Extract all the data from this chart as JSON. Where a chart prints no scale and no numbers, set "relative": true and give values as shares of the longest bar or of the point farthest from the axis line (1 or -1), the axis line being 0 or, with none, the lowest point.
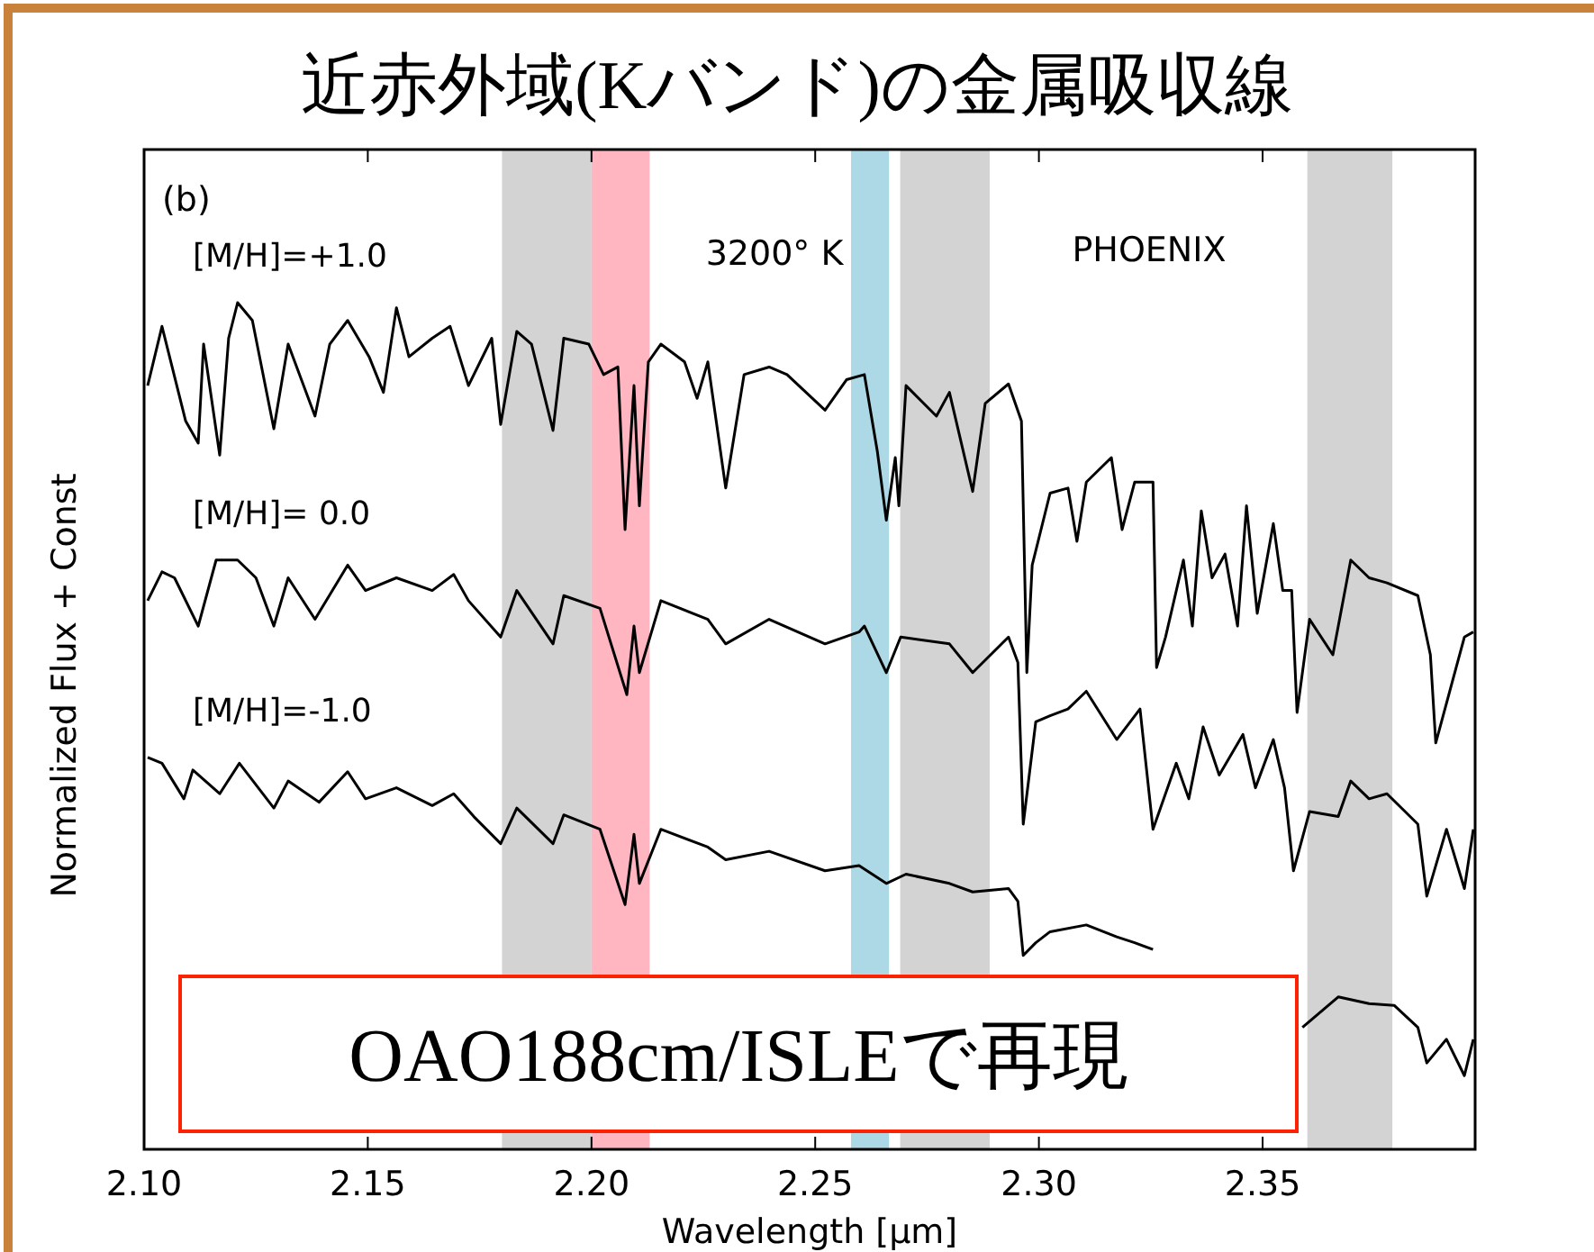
{
  "chart_data": {
    "type": "line",
    "relative": true,
    "title": "近赤外域(Kバンド)の金属吸収線",
    "xlabel": "Wavelength [μm]",
    "ylabel": "Normalized Flux + Const",
    "xlim": [
      2.1,
      2.3975
    ],
    "xticks": [
      {
        "value": 2.1,
        "label": "2.10"
      },
      2.15,
      {
        "value": 2.2,
        "label": "2.20"
      },
      2.25,
      {
        "value": 2.3,
        "label": "2.30"
      },
      2.35
    ],
    "grid": false,
    "marker": "none",
    "line_style": "solid",
    "bands": [
      {
        "axis": "x",
        "from": 2.18,
        "to": 2.2,
        "color": "#d3d3d3"
      },
      {
        "axis": "x",
        "from": 2.2,
        "to": 2.213,
        "color": "#ffb6c1"
      },
      {
        "axis": "x",
        "from": 2.258,
        "to": 2.2665,
        "color": "#add8e6"
      },
      {
        "axis": "x",
        "from": 2.269,
        "to": 2.289,
        "color": "#d3d3d3"
      },
      {
        "axis": "x",
        "from": 2.36,
        "to": 2.379,
        "color": "#d3d3d3"
      }
    ],
    "annotations": [
      "(b)",
      "3200° K",
      "PHOENIX",
      "OAO188cm/ISLEで再現"
    ],
    "series": [
      {
        "name": "[M/H]=+1.0",
        "color": "#000000",
        "x": [
          2.1008,
          2.104,
          2.1093,
          2.1121,
          2.1133,
          2.1169,
          2.1189,
          2.1209,
          2.1242,
          2.129,
          2.1322,
          2.1382,
          2.1415,
          2.1455,
          2.1503,
          2.1535,
          2.1564,
          2.1592,
          2.1644,
          2.1684,
          2.1725,
          2.1777,
          2.1797,
          2.1833,
          2.1866,
          2.1914,
          2.1938,
          2.1994,
          2.2027,
          2.2059,
          2.2075,
          2.2095,
          2.2107,
          2.2127,
          2.2155,
          2.2208,
          2.2236,
          2.226,
          2.23,
          2.2341,
          2.2397,
          2.2437,
          2.2522,
          2.257,
          2.261,
          2.2639,
          2.2659,
          2.2679,
          2.2687,
          2.2703,
          2.2771,
          2.28,
          2.2852,
          2.288,
          2.2932,
          2.2961,
          2.2973,
          2.2985,
          2.3025,
          2.3065,
          2.3085,
          2.3106,
          2.3162,
          2.3186,
          2.3214,
          2.3255,
          2.3263,
          2.3283,
          2.3323,
          2.3343,
          2.3363,
          2.3387,
          2.3416,
          2.3444,
          2.3464,
          2.3488,
          2.3524,
          2.3545,
          2.3565,
          2.3577,
          2.3605,
          2.3657,
          2.3697,
          2.3738,
          2.3778,
          2.3847,
          2.3875,
          2.3887,
          2.3951,
          2.3971
        ],
        "values": [
          0.902,
          0.972,
          0.86,
          0.834,
          0.951,
          0.82,
          0.958,
          1.0,
          0.979,
          0.851,
          0.951,
          0.866,
          0.951,
          0.979,
          0.936,
          0.894,
          0.994,
          0.936,
          0.958,
          0.972,
          0.902,
          0.958,
          0.856,
          0.966,
          0.951,
          0.849,
          0.958,
          0.951,
          0.915,
          0.924,
          0.732,
          0.902,
          0.76,
          0.93,
          0.951,
          0.93,
          0.887,
          0.93,
          0.781,
          0.915,
          0.924,
          0.915,
          0.873,
          0.909,
          0.915,
          0.824,
          0.743,
          0.817,
          0.76,
          0.902,
          0.866,
          0.894,
          0.777,
          0.881,
          0.904,
          0.86,
          0.563,
          0.69,
          0.775,
          0.781,
          0.718,
          0.788,
          0.817,
          0.732,
          0.788,
          0.788,
          0.569,
          0.605,
          0.696,
          0.618,
          0.754,
          0.675,
          0.703,
          0.618,
          0.76,
          0.633,
          0.739,
          0.66,
          0.66,
          0.516,
          0.626,
          0.584,
          0.696,
          0.675,
          0.669,
          0.654,
          0.584,
          0.48,
          0.605,
          0.611
        ]
      },
      {
        "name": "[M/H]= 0.0",
        "color": "#000000",
        "x": [
          2.1008,
          2.104,
          2.1068,
          2.1121,
          2.1161,
          2.1209,
          2.125,
          2.129,
          2.1322,
          2.1382,
          2.1455,
          2.1495,
          2.1564,
          2.1644,
          2.1692,
          2.1725,
          2.1797,
          2.1833,
          2.1914,
          2.1938,
          2.2019,
          2.2079,
          2.2095,
          2.2107,
          2.2155,
          2.226,
          2.23,
          2.2397,
          2.2522,
          2.2598,
          2.261,
          2.2659,
          2.2691,
          2.28,
          2.2852,
          2.2932,
          2.2953,
          2.2965,
          2.2993,
          2.3025,
          2.3065,
          2.3106,
          2.3174,
          2.3226,
          2.3255,
          2.3307,
          2.3335,
          2.3367,
          2.3403,
          2.3456,
          2.3484,
          2.3524,
          2.3549,
          2.3569,
          2.3605,
          2.3669,
          2.3697,
          2.3738,
          2.3778,
          2.3847,
          2.3867,
          2.3911,
          2.3951,
          2.3971
        ],
        "values": [
          0.648,
          0.682,
          0.675,
          0.618,
          0.696,
          0.696,
          0.675,
          0.618,
          0.675,
          0.626,
          0.69,
          0.66,
          0.675,
          0.66,
          0.679,
          0.648,
          0.605,
          0.66,
          0.597,
          0.654,
          0.639,
          0.537,
          0.618,
          0.563,
          0.648,
          0.626,
          0.597,
          0.626,
          0.597,
          0.611,
          0.618,
          0.563,
          0.605,
          0.597,
          0.563,
          0.605,
          0.575,
          0.384,
          0.505,
          0.512,
          0.52,
          0.541,
          0.484,
          0.52,
          0.378,
          0.456,
          0.414,
          0.499,
          0.442,
          0.49,
          0.427,
          0.484,
          0.427,
          0.329,
          0.399,
          0.393,
          0.435,
          0.414,
          0.42,
          0.384,
          0.299,
          0.378,
          0.308,
          0.378
        ]
      },
      {
        "name": "[M/H]=-1.0",
        "color": "#000000",
        "x": [
          2.1008,
          2.104,
          2.1089,
          2.1109,
          2.1169,
          2.1213,
          2.129,
          2.1322,
          2.1391,
          2.1455,
          2.1495,
          2.1564,
          2.1644,
          2.1692,
          2.1737,
          2.1797,
          2.1833,
          2.1914,
          2.1938,
          2.2019,
          2.2075,
          2.2095,
          2.2107,
          2.2155,
          2.226,
          2.23,
          2.2397,
          2.2522,
          2.2598,
          2.2659,
          2.2703,
          2.28,
          2.2852,
          2.2932,
          2.2953,
          2.2965,
          2.2993,
          2.3025,
          2.3106,
          2.3174,
          2.3214,
          2.3255,
          2.3295,
          2.3496,
          2.3589,
          2.3669,
          2.3738,
          2.3794,
          2.3847,
          2.3867,
          2.3911,
          2.3951,
          2.3971
        ],
        "values": [
          0.463,
          0.456,
          0.414,
          0.448,
          0.42,
          0.456,
          0.403,
          0.435,
          0.41,
          0.446,
          0.414,
          0.427,
          0.406,
          0.42,
          0.393,
          0.361,
          0.403,
          0.361,
          0.395,
          0.378,
          0.289,
          0.372,
          0.314,
          0.378,
          0.357,
          0.342,
          0.352,
          0.329,
          0.335,
          0.314,
          0.325,
          0.314,
          0.304,
          0.308,
          0.293,
          0.229,
          0.244,
          0.257,
          0.265,
          0.251,
          0.244,
          0.236,
          null,
          null,
          0.144,
          0.18,
          0.172,
          0.17,
          0.144,
          0.102,
          0.13,
          0.087,
          0.13
        ]
      }
    ]
  }
}
